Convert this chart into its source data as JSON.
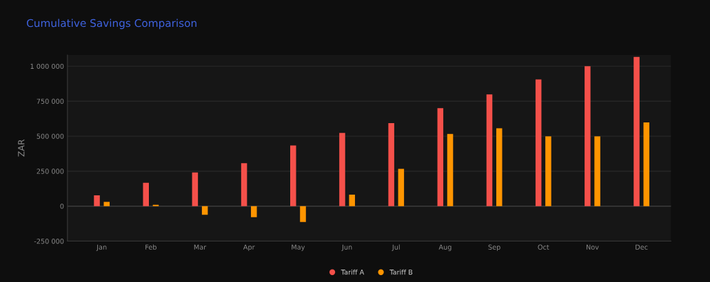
{
  "chart_data": {
    "type": "bar",
    "title": "Cumulative Savings Comparison",
    "ylabel": "ZAR",
    "categories": [
      "Jan",
      "Feb",
      "Mar",
      "Apr",
      "May",
      "Jun",
      "Jul",
      "Aug",
      "Sep",
      "Oct",
      "Nov",
      "Dec"
    ],
    "series": [
      {
        "name": "Tariff A",
        "color": "#f5504a",
        "values": [
          77000,
          167000,
          241000,
          307000,
          434000,
          523000,
          593000,
          700000,
          798000,
          905000,
          1000000,
          1066000
        ]
      },
      {
        "name": "Tariff B",
        "color": "#ff9500",
        "values": [
          31000,
          10000,
          -62000,
          -79000,
          -113000,
          82000,
          266000,
          516000,
          556000,
          498000,
          498000,
          598000
        ]
      }
    ],
    "ylim": [
      -250000,
      1080000
    ],
    "yticks": [
      {
        "value": -250000,
        "label": "-250 000"
      },
      0,
      {
        "value": 250000,
        "label": "250 000"
      },
      {
        "value": 500000,
        "label": "500 000"
      },
      {
        "value": 750000,
        "label": "750 000"
      },
      {
        "value": 1000000,
        "label": "1 000 000"
      }
    ],
    "grid": "y",
    "legend": "bottom"
  }
}
